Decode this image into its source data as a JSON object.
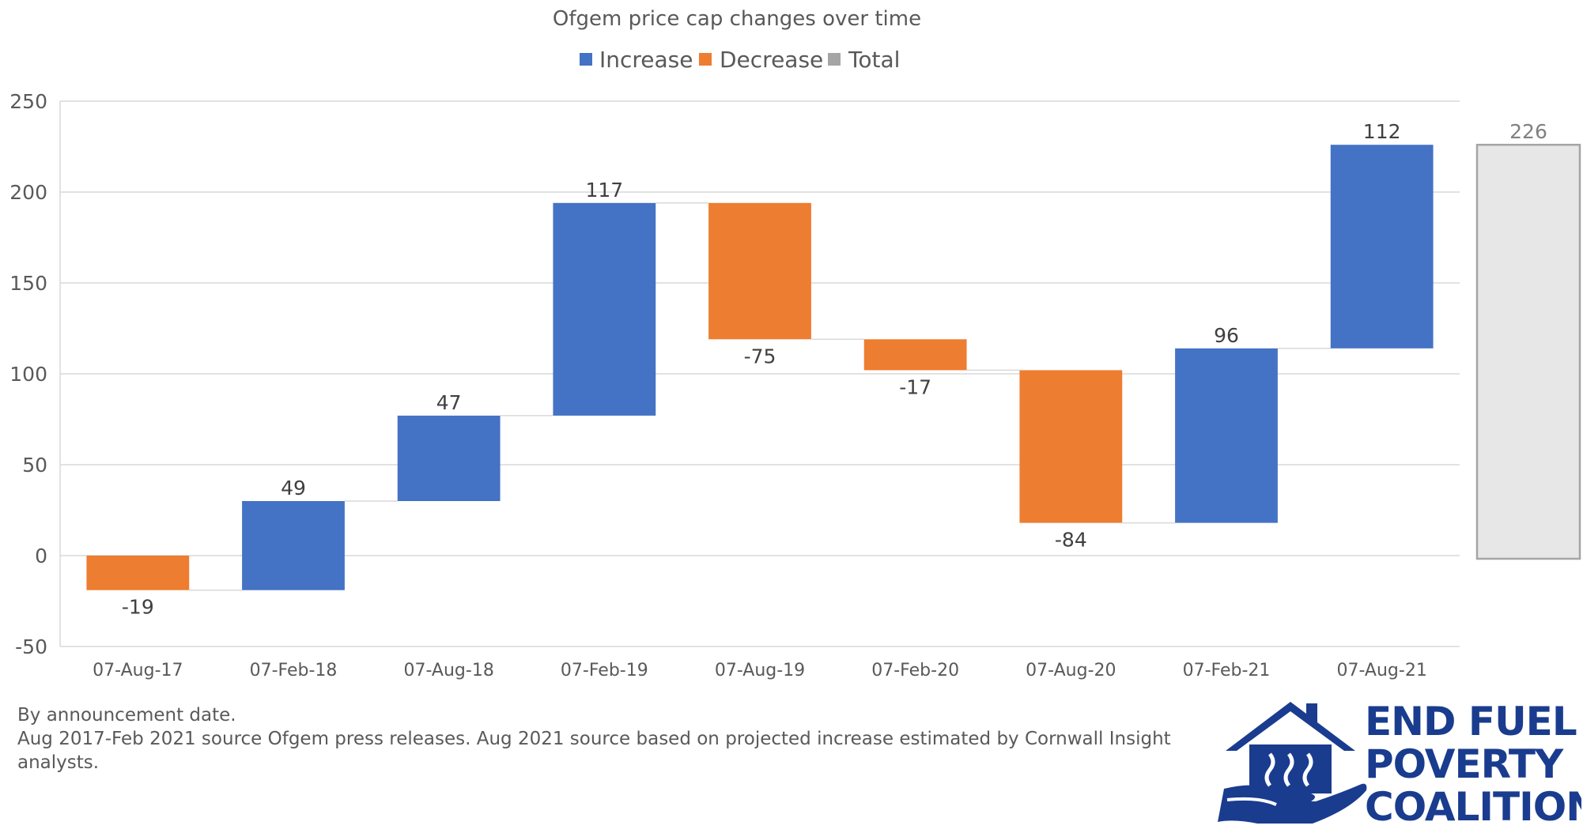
{
  "chart_data": {
    "type": "waterfall",
    "title": "Ofgem price cap changes over time",
    "legend": {
      "position": "top",
      "items": [
        {
          "name": "Increase",
          "color": "#4472c4"
        },
        {
          "name": "Decrease",
          "color": "#ed7d31"
        },
        {
          "name": "Total",
          "color": "#a5a5a5"
        }
      ]
    },
    "categories": [
      "07-Aug-17",
      "07-Feb-18",
      "07-Aug-18",
      "07-Feb-19",
      "07-Aug-19",
      "07-Feb-20",
      "07-Aug-20",
      "07-Feb-21",
      "07-Aug-21"
    ],
    "values": [
      -19,
      49,
      47,
      117,
      -75,
      -17,
      -84,
      96,
      112
    ],
    "value_labels": [
      "-19",
      "49",
      "47",
      "117",
      "-75",
      "-17",
      "-84",
      "96",
      "112"
    ],
    "total": {
      "value": 226,
      "label": "226"
    },
    "y_axis": {
      "min": -50,
      "max": 250,
      "ticks": [
        250,
        200,
        150,
        100,
        50,
        0,
        -50
      ],
      "tick_labels": [
        "250",
        "200",
        "150",
        "100",
        "50",
        "0",
        "-50"
      ]
    },
    "grid": true,
    "colors": {
      "increase": "#4472c4",
      "decrease": "#ed7d31",
      "total_fill": "#e7e7e7",
      "total_stroke": "#a5a5a5"
    }
  },
  "notes": {
    "line1": "By announcement date.",
    "line2": "Aug 2017-Feb 2021 source Ofgem press releases. Aug 2021 source based on projected increase estimated by Cornwall Insight analysts."
  },
  "logo": {
    "line1": "END FUEL",
    "line2": "POVERTY",
    "line3": "COALITION",
    "color": "#1a3c8f"
  }
}
